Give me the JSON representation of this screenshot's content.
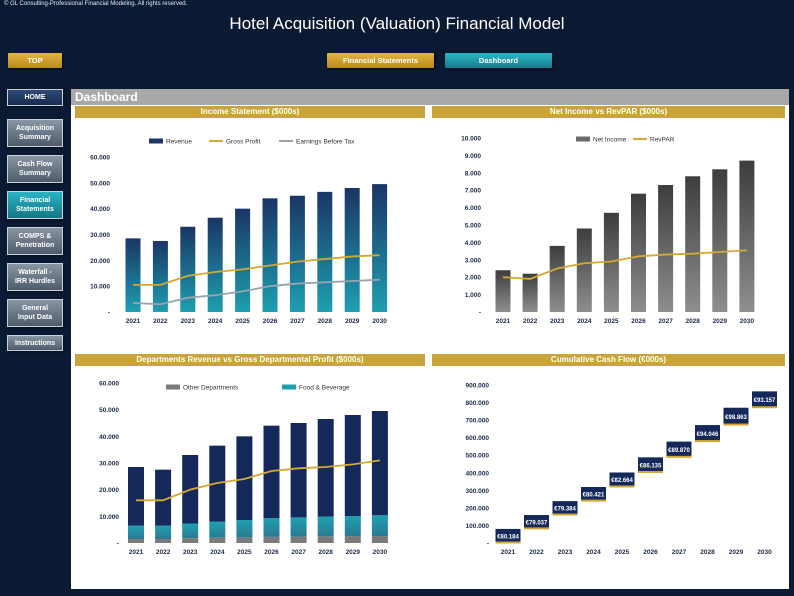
{
  "copyright": "© GL Consulting-Professional Financial Modeling. All rights reserved.",
  "title": "Hotel Acquisition (Valuation) Financial Model",
  "buttons": {
    "top": "TOP",
    "financial_statements": "Financial Statements",
    "dashboard": "Dashboard"
  },
  "sidebar": {
    "home": "HOME",
    "items": [
      {
        "line1": "Acquisition",
        "line2": "Summary"
      },
      {
        "line1": "Cash Flow",
        "line2": "Summary"
      },
      {
        "line1": "Financial",
        "line2": "Statements"
      },
      {
        "line1": "COMPS &",
        "line2": "Penetration"
      },
      {
        "line1": "Waterfall -",
        "line2": "IRR Hurdles"
      },
      {
        "line1": "General",
        "line2": "Input Data"
      },
      {
        "line1": "Instructions",
        "line2": ""
      }
    ]
  },
  "dashboard_title": "Dashboard",
  "colors": {
    "navy": "#0b1a33",
    "gold": "#caa43a",
    "teal": "#1f9aab",
    "navy_bar": "#14295a",
    "gray_bar": "#707070"
  },
  "chart_data": [
    {
      "type": "bar",
      "title": "Income Statement ($000s)",
      "categories": [
        "2021",
        "2022",
        "2023",
        "2024",
        "2025",
        "2026",
        "2027",
        "2028",
        "2029",
        "2030"
      ],
      "y_ticks": [
        "60.000",
        "50.000",
        "40.000",
        "30.000",
        "20.000",
        "10.000",
        "-"
      ],
      "ylim": [
        0,
        60000
      ],
      "series": [
        {
          "name": "Revenue",
          "kind": "bar",
          "values": [
            28500,
            27500,
            33000,
            36500,
            40000,
            44000,
            45000,
            46500,
            48000,
            49500
          ]
        },
        {
          "name": "Gross Profit",
          "kind": "line",
          "values": [
            10500,
            10500,
            14000,
            15500,
            16500,
            18000,
            19500,
            20500,
            21500,
            22000
          ]
        },
        {
          "name": "Earnings Before Tax",
          "kind": "line",
          "values": [
            3500,
            3000,
            5500,
            6500,
            8000,
            10000,
            11000,
            11500,
            12000,
            12500
          ]
        }
      ]
    },
    {
      "type": "bar",
      "title": "Net Income vs RevPAR ($000s)",
      "categories": [
        "2021",
        "2022",
        "2023",
        "2024",
        "2025",
        "2026",
        "2027",
        "2028",
        "2029",
        "2030"
      ],
      "y_ticks": [
        "10.000",
        "9.000",
        "8.000",
        "7.000",
        "6.000",
        "5.000",
        "4.000",
        "3.000",
        "2.000",
        "1.000",
        "-"
      ],
      "ylim": [
        0,
        10000
      ],
      "series": [
        {
          "name": "Net Income",
          "kind": "bar",
          "values": [
            2400,
            2200,
            3800,
            4800,
            5700,
            6800,
            7300,
            7800,
            8200,
            8700
          ]
        },
        {
          "name": "RevPAR",
          "kind": "line",
          "values": [
            2000,
            1900,
            2500,
            2800,
            2900,
            3200,
            3300,
            3350,
            3450,
            3550
          ]
        }
      ]
    },
    {
      "type": "bar",
      "title": "Departments Revenue vs Gross Departmental Profit ($000s)",
      "categories": [
        "2021",
        "2022",
        "2023",
        "2024",
        "2025",
        "2026",
        "2027",
        "2028",
        "2029",
        "2030"
      ],
      "y_ticks": [
        "60.000",
        "50.000",
        "40.000",
        "30.000",
        "20.000",
        "10.000",
        "-"
      ],
      "ylim": [
        0,
        60000
      ],
      "series": [
        {
          "name": "Other Departments",
          "kind": "stack",
          "values": [
            1500,
            1500,
            1800,
            2000,
            2100,
            2300,
            2400,
            2500,
            2500,
            2600
          ]
        },
        {
          "name": "Food & Beverage",
          "kind": "stack",
          "values": [
            5000,
            5000,
            5500,
            6000,
            6500,
            7000,
            7200,
            7400,
            7600,
            7800
          ]
        },
        {
          "name": "",
          "kind": "stack",
          "values": [
            22000,
            21000,
            25700,
            28500,
            31400,
            34700,
            35400,
            36600,
            37900,
            39100
          ]
        },
        {
          "name": "",
          "kind": "line",
          "values": [
            16000,
            16000,
            20000,
            22500,
            24000,
            27000,
            28000,
            28500,
            29500,
            31000
          ]
        }
      ]
    },
    {
      "type": "bar",
      "title": "Cumulative Cash Flow (€000s)",
      "categories": [
        "2021",
        "2022",
        "2023",
        "2024",
        "2025",
        "2026",
        "2027",
        "2028",
        "2029",
        "2030"
      ],
      "y_ticks": [
        "900.000",
        "800.000",
        "700.000",
        "600.000",
        "500.000",
        "400.000",
        "300.000",
        "200.000",
        "100.000",
        "-"
      ],
      "ylim": [
        0,
        900000
      ],
      "series": [
        {
          "name": "",
          "kind": "waterfall",
          "values": [
            80184,
            79037,
            79384,
            80421,
            82664,
            86135,
            89870,
            94046,
            98863,
            93157
          ],
          "labels": [
            "€80.184",
            "€79.037",
            "€79.384",
            "€80.421",
            "€82.664",
            "€86.135",
            "€89.870",
            "€94.046",
            "€98.863",
            "€93.157"
          ]
        }
      ]
    }
  ]
}
